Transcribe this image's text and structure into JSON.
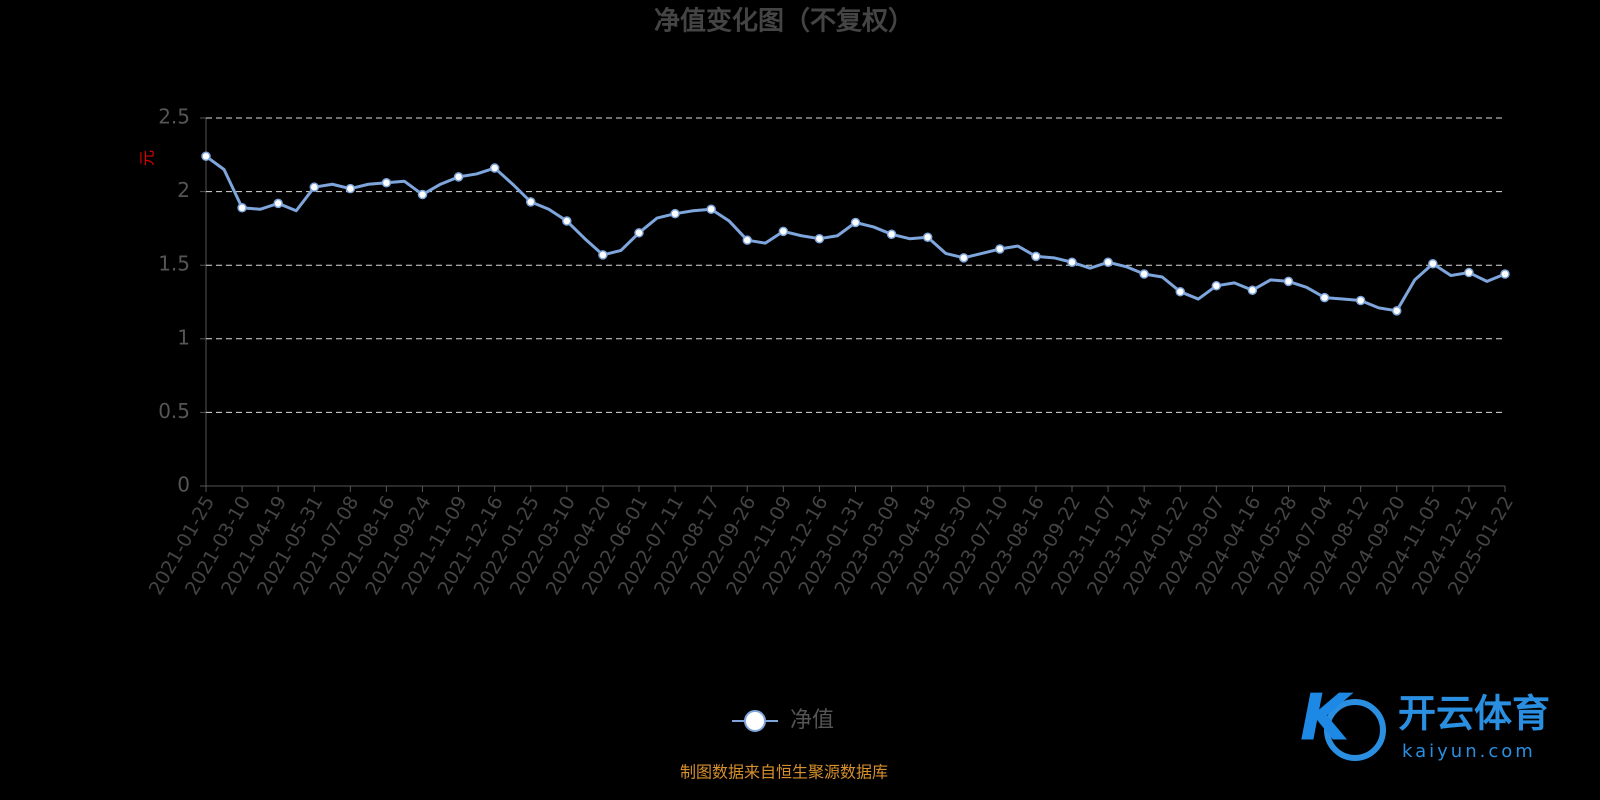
{
  "chart_data": {
    "type": "line",
    "title": "净值变化图（不复权）",
    "y_label": "元",
    "categories": [
      "2021-01-25",
      null,
      "2021-03-10",
      null,
      "2021-04-19",
      null,
      "2021-05-31",
      null,
      "2021-07-08",
      null,
      "2021-08-16",
      null,
      "2021-09-24",
      null,
      "2021-11-09",
      null,
      "2021-12-16",
      null,
      "2022-01-25",
      null,
      "2022-03-10",
      null,
      "2022-04-20",
      null,
      "2022-06-01",
      null,
      "2022-07-11",
      null,
      "2022-08-17",
      null,
      "2022-09-26",
      null,
      "2022-11-09",
      null,
      "2022-12-16",
      null,
      "2023-01-31",
      null,
      "2023-03-09",
      null,
      "2023-04-18",
      null,
      "2023-05-30",
      null,
      "2023-07-10",
      null,
      "2023-08-16",
      null,
      "2023-09-22",
      null,
      "2023-11-07",
      null,
      "2023-12-14",
      null,
      "2024-01-22",
      null,
      "2024-03-07",
      null,
      "2024-04-16",
      null,
      "2024-05-28",
      null,
      "2024-07-04",
      null,
      "2024-08-12",
      null,
      "2024-09-20",
      null,
      "2024-11-05",
      null,
      "2024-12-12",
      null,
      "2025-01-22"
    ],
    "series": [
      {
        "name": "净值",
        "color": "#7ea6dc",
        "values": [
          2.24,
          2.15,
          1.89,
          1.88,
          1.92,
          1.87,
          2.03,
          2.05,
          2.02,
          2.05,
          2.06,
          2.07,
          1.98,
          2.05,
          2.1,
          2.12,
          2.16,
          2.05,
          1.93,
          1.88,
          1.8,
          1.68,
          1.57,
          1.6,
          1.72,
          1.82,
          1.85,
          1.87,
          1.88,
          1.8,
          1.67,
          1.65,
          1.73,
          1.7,
          1.68,
          1.7,
          1.79,
          1.76,
          1.71,
          1.68,
          1.69,
          1.58,
          1.55,
          1.58,
          1.61,
          1.63,
          1.56,
          1.55,
          1.52,
          1.48,
          1.52,
          1.49,
          1.44,
          1.42,
          1.32,
          1.27,
          1.36,
          1.38,
          1.33,
          1.4,
          1.39,
          1.35,
          1.28,
          1.27,
          1.26,
          1.21,
          1.19,
          1.4,
          1.51,
          1.43,
          1.45,
          1.39,
          1.44
        ]
      }
    ],
    "ylim": [
      0,
      2.5
    ],
    "yticks": [
      0,
      0.5,
      1,
      1.5,
      2,
      2.5
    ],
    "grid": true,
    "source": "制图数据来自恒生聚源数据库",
    "watermark": "开云体育",
    "watermark_url": "kaiyun.com"
  }
}
